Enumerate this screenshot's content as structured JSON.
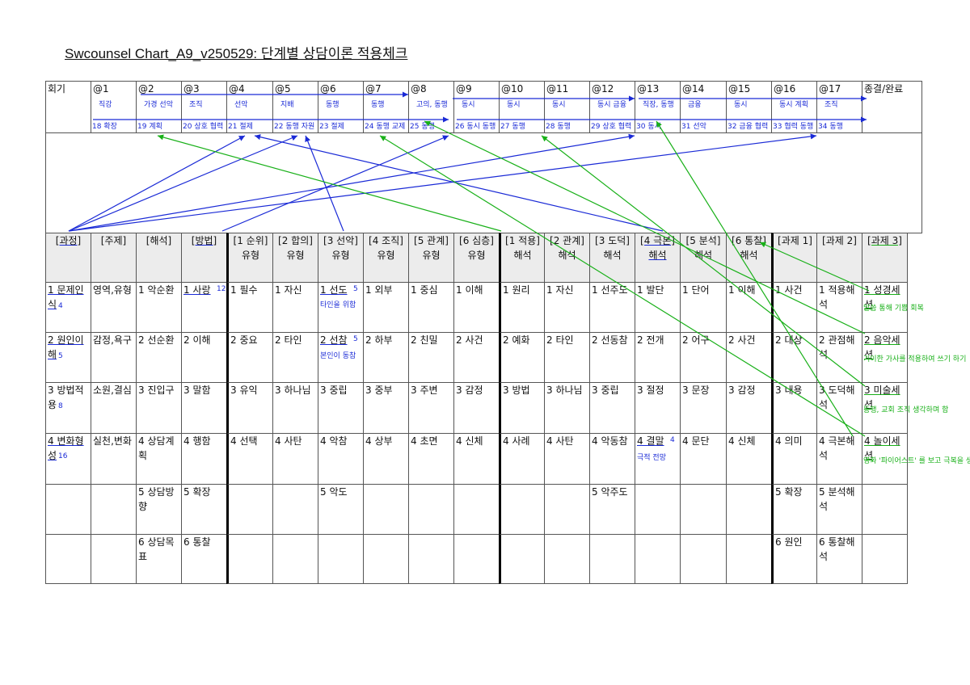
{
  "title": "Swcounsel Chart_A9_v250529: 단계별 상담이론 적용체크",
  "session_row": {
    "first_label": "회기",
    "sessions": [
      "@1",
      "@2",
      "@3",
      "@4",
      "@5",
      "@6",
      "@7",
      "@8",
      "@9",
      "@10",
      "@11",
      "@12",
      "@13",
      "@14",
      "@15",
      "@16",
      "@17"
    ],
    "last_label": "종결/완료",
    "handwritten_top": [
      "직강",
      "가경 선악",
      "조직",
      "선악",
      "지배",
      "동행",
      "동행",
      "고의, 동행",
      "동시",
      "동시",
      "동시",
      "동시 금융",
      "직장, 동행",
      "금융",
      "동시",
      "동시 계획",
      "조직"
    ],
    "handwritten_bottom": [
      "18 확장",
      "19 계획",
      "20 상호 협력",
      "21 절제",
      "22 동행 자원",
      "23 절제",
      "24 동행 교제",
      "25 동행",
      "26 동시 동행",
      "27 동행",
      "28 동행",
      "29 상호 협력",
      "30 동시",
      "31 선악",
      "32 금융 협력",
      "33 협력 동행",
      "34 동행"
    ]
  },
  "headers": [
    "[과정]",
    "[주제]",
    "[해석]",
    "[방법]",
    "[1 순위] 유형",
    "[2 합의] 유형",
    "[3 선악] 유형",
    "[4 조직] 유형",
    "[5 관계] 유형",
    "[6 심층] 유형",
    "[1 적용] 해석",
    "[2 관계] 해석",
    "[3 도덕] 해석",
    "[4 극본] 해석",
    "[5 분석] 해석",
    "[6 통찰] 해석",
    "[과제 1]",
    "[과제 2]",
    "[과제 3]"
  ],
  "rows": [
    [
      "1 문제인식",
      "영역,유형",
      "1 악순환",
      "1 사랑",
      "1 필수",
      "1 자신",
      "1 선도",
      "1 외부",
      "1 중심",
      "1 이해",
      "1 원리",
      "1 자신",
      "1 선주도",
      "1 발단",
      "1 단어",
      "1 이해",
      "1 사건",
      "1 적용해석",
      "1 성경세션"
    ],
    [
      "2 원인이해",
      "감정,욕구",
      "2 선순환",
      "2 이해",
      "2 중요",
      "2 타인",
      "2 선참",
      "2 하부",
      "2 친밀",
      "2 사건",
      "2 예화",
      "2 타인",
      "2 선동참",
      "2 전개",
      "2 어구",
      "2 사건",
      "2 대상",
      "2 관점해석",
      "2 음악세션"
    ],
    [
      "3 방법적용",
      "소원,결심",
      "3 진입구",
      "3 말함",
      "3 유익",
      "3 하나님",
      "3 중립",
      "3 중부",
      "3 주변",
      "3 감정",
      "3 방법",
      "3 하나님",
      "3 중립",
      "3 절정",
      "3 문장",
      "3 감정",
      "3 내용",
      "3 도덕해석",
      "3 미술세션"
    ],
    [
      "4 변화형성",
      "실천,변화",
      "4 상담계획",
      "4 행함",
      "4 선택",
      "4 사탄",
      "4 악참",
      "4 상부",
      "4 초면",
      "4 신체",
      "4 사례",
      "4 사탄",
      "4 악동참",
      "4 결말",
      "4 문단",
      "4 신체",
      "4 의미",
      "4 극본해석",
      "4 놀이세션"
    ],
    [
      "",
      "",
      "5 상담방향",
      "5 확장",
      "",
      "",
      "5 악도",
      "",
      "",
      "",
      "",
      "",
      "5 악주도",
      "",
      "",
      "",
      "5 확장",
      "5 분석해석",
      ""
    ],
    [
      "",
      "",
      "6 상담목표",
      "6 통찰",
      "",
      "",
      "",
      "",
      "",
      "",
      "",
      "",
      "",
      "",
      "",
      "",
      "6 원인",
      "6 통찰해석",
      ""
    ]
  ],
  "handwritten_notes": {
    "row1_col0": "4",
    "row2_col0": "5",
    "row3_col0": "8",
    "row4_col0": "16",
    "row1_col3": "12",
    "row1_col6": "5",
    "row1_col6_sub": "타인을 위함",
    "row2_col6": "5",
    "row2_col6_sub": "본인이 동참",
    "row4_col13": "4",
    "row4_col13_sub": "극적 전망",
    "row1_col18_sub": "말씀 통해 기쁨 회복",
    "row2_col18_sub": "기이한 가사를 적용하여 쓰기 하기",
    "row3_col18_sub": "동행, 교회 조직 생각하며 함",
    "row4_col18_sub": "영화 '파이어스트' 를 보고 극복을 생각하게 함"
  },
  "colors": {
    "ink_blue": "#1a2ad6",
    "ink_green": "#18b018",
    "header_bg": "#ececec",
    "grid": "#555555"
  }
}
